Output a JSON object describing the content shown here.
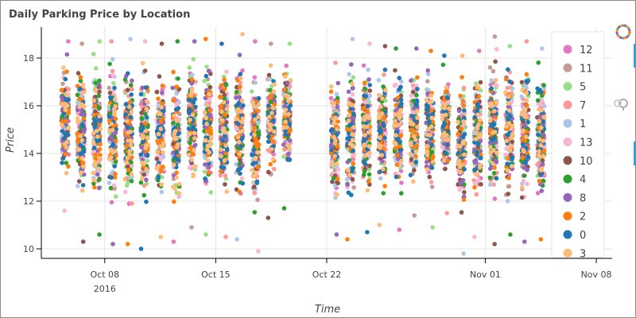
{
  "chart_data": {
    "type": "scatter",
    "title": "Daily Parking Price by Location",
    "xlabel": "Time",
    "ylabel": "Price",
    "x_axis_type": "datetime",
    "xlim": [
      "2016-10-04",
      "2016-11-09"
    ],
    "ylim": [
      9.6,
      19.3
    ],
    "x_ticks": [
      {
        "label": "Oct 08",
        "sublabel": "2016",
        "date": "2016-10-08"
      },
      {
        "label": "Oct 15",
        "date": "2016-10-15"
      },
      {
        "label": "Oct 22",
        "date": "2016-10-22"
      },
      {
        "label": "Nov 01",
        "date": "2016-11-01"
      },
      {
        "label": "Nov 08",
        "date": "2016-11-08"
      }
    ],
    "y_ticks": [
      10,
      12,
      14,
      16,
      18
    ],
    "grid": true,
    "legend": "right",
    "series": [
      {
        "name": "12",
        "color": "#e377c2"
      },
      {
        "name": "11",
        "color": "#c49c94"
      },
      {
        "name": "5",
        "color": "#98df8a"
      },
      {
        "name": "7",
        "color": "#ff9896"
      },
      {
        "name": "1",
        "color": "#aec7e8"
      },
      {
        "name": "13",
        "color": "#f7b6d2"
      },
      {
        "name": "10",
        "color": "#8c564b"
      },
      {
        "name": "4",
        "color": "#2ca02c"
      },
      {
        "name": "8",
        "color": "#9467bd"
      },
      {
        "name": "2",
        "color": "#ff7f0e"
      },
      {
        "name": "0",
        "color": "#1f77b4"
      },
      {
        "name": "3",
        "color": "#ffbb78"
      }
    ],
    "observation_days": [
      "2016-10-05",
      "2016-10-06",
      "2016-10-07",
      "2016-10-08",
      "2016-10-09",
      "2016-10-10",
      "2016-10-11",
      "2016-10-12",
      "2016-10-13",
      "2016-10-14",
      "2016-10-15",
      "2016-10-16",
      "2016-10-17",
      "2016-10-18",
      "2016-10-19",
      "2016-10-22",
      "2016-10-23",
      "2016-10-24",
      "2016-10-25",
      "2016-10-26",
      "2016-10-27",
      "2016-10-28",
      "2016-10-29",
      "2016-10-30",
      "2016-10-31",
      "2016-11-01",
      "2016-11-02",
      "2016-11-03",
      "2016-11-04",
      "2016-11-05",
      "2016-11-06",
      "2016-11-07"
    ],
    "daily_price_range": [
      [
        11.6,
        18.7
      ],
      [
        10.3,
        18.6
      ],
      [
        10.6,
        18.7
      ],
      [
        10.2,
        18.7
      ],
      [
        10.2,
        18.8
      ],
      [
        10.0,
        18.7
      ],
      [
        10.5,
        18.6
      ],
      [
        10.3,
        18.7
      ],
      [
        10.9,
        18.7
      ],
      [
        10.6,
        18.8
      ],
      [
        10.5,
        18.6
      ],
      [
        10.4,
        19.0
      ],
      [
        9.9,
        18.7
      ],
      [
        11.3,
        18.6
      ],
      [
        11.7,
        18.6
      ],
      [
        10.6,
        17.8
      ],
      [
        10.4,
        18.8
      ],
      [
        10.7,
        18.6
      ],
      [
        11.0,
        18.5
      ],
      [
        10.8,
        18.4
      ],
      [
        11.4,
        18.4
      ],
      [
        10.9,
        18.3
      ],
      [
        11.5,
        18.1
      ],
      [
        9.8,
        18.1
      ],
      [
        10.5,
        18.3
      ],
      [
        10.2,
        18.9
      ],
      [
        10.6,
        18.5
      ],
      [
        10.3,
        18.7
      ],
      [
        10.4,
        18.4
      ],
      [
        10.6,
        18.7
      ],
      [
        10.5,
        18.4
      ],
      [
        11.0,
        17.8
      ]
    ],
    "points_per_series_per_day": 14
  },
  "toolbar": {
    "logo_icon": "bokeh-logo-icon",
    "items": [
      "pan-tool-icon",
      "zoom-tool-icon",
      "reset-tool-icon",
      "hover-tool-icon"
    ]
  }
}
